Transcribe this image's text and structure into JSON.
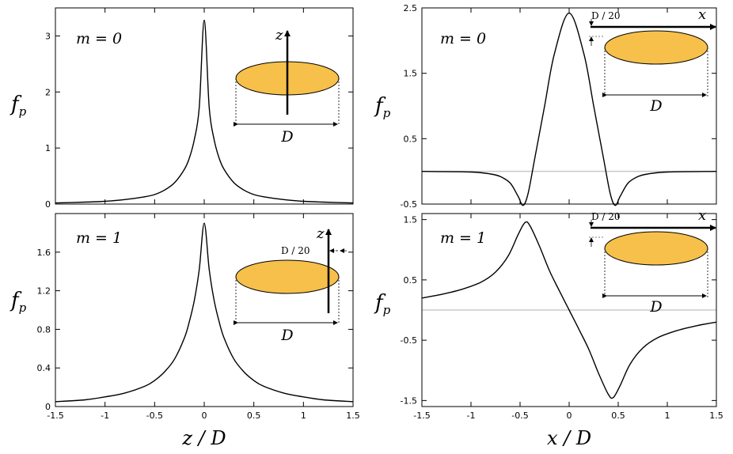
{
  "chart_data": [
    {
      "type": "line",
      "panel": "top-left",
      "annotation": "m = 0",
      "ylabel": "f",
      "ylabel_sub": "p",
      "xlabel": "",
      "xlim": [
        -1.5,
        1.5
      ],
      "ylim": [
        0,
        3.5
      ],
      "yticks": [
        "0",
        "1",
        "2",
        "3"
      ],
      "inset": {
        "axis_label": "z",
        "size_label": "D"
      },
      "series": [
        {
          "name": "f_p",
          "x": [
            -1.5,
            -1.2,
            -1.0,
            -0.8,
            -0.6,
            -0.5,
            -0.4,
            -0.3,
            -0.2,
            -0.15,
            -0.1,
            -0.05,
            0,
            0.05,
            0.1,
            0.15,
            0.2,
            0.3,
            0.4,
            0.5,
            0.6,
            0.8,
            1.0,
            1.2,
            1.5
          ],
          "y": [
            0.02,
            0.035,
            0.05,
            0.08,
            0.13,
            0.17,
            0.25,
            0.38,
            0.62,
            0.82,
            1.15,
            1.72,
            3.28,
            1.72,
            1.15,
            0.82,
            0.62,
            0.38,
            0.25,
            0.17,
            0.13,
            0.08,
            0.05,
            0.035,
            0.02
          ]
        }
      ]
    },
    {
      "type": "line",
      "panel": "top-right",
      "annotation": "m = 0",
      "ylabel": "f",
      "ylabel_sub": "p",
      "xlabel": "",
      "xlim": [
        -1.5,
        1.5
      ],
      "ylim": [
        -0.5,
        2.5
      ],
      "yticks": [
        "-0.5",
        "0.5",
        "1.5",
        "2.5"
      ],
      "zero_line": true,
      "inset": {
        "axis_label": "x",
        "size_label": "D",
        "offset_label": "D / 20"
      },
      "series": [
        {
          "name": "f_p",
          "x": [
            -1.5,
            -1.0,
            -0.8,
            -0.7,
            -0.6,
            -0.52,
            -0.47,
            -0.42,
            -0.35,
            -0.25,
            -0.15,
            0,
            0.15,
            0.25,
            0.35,
            0.42,
            0.47,
            0.52,
            0.6,
            0.7,
            0.8,
            1.0,
            1.5
          ],
          "y": [
            0,
            -0.01,
            -0.04,
            -0.08,
            -0.18,
            -0.38,
            -0.52,
            -0.35,
            0.2,
            1.0,
            1.8,
            2.42,
            1.8,
            1.0,
            0.2,
            -0.35,
            -0.52,
            -0.38,
            -0.18,
            -0.08,
            -0.04,
            -0.01,
            0
          ]
        }
      ]
    },
    {
      "type": "line",
      "panel": "bottom-left",
      "annotation": "m = 1",
      "ylabel": "f",
      "ylabel_sub": "p",
      "xlabel": "z / D",
      "xlim": [
        -1.5,
        1.5
      ],
      "xticks": [
        "-1.5",
        "-1",
        "-0.5",
        "0",
        "0.5",
        "1",
        "1.5"
      ],
      "ylim": [
        0,
        2.0
      ],
      "yticks": [
        "0",
        "0.4",
        "0.8",
        "1.2",
        "1.6"
      ],
      "inset": {
        "axis_label": "z",
        "size_label": "D",
        "offset_label": "D / 20"
      },
      "series": [
        {
          "name": "f_p",
          "x": [
            -1.5,
            -1.2,
            -1.0,
            -0.8,
            -0.6,
            -0.5,
            -0.4,
            -0.3,
            -0.2,
            -0.15,
            -0.1,
            -0.05,
            0,
            0.05,
            0.1,
            0.15,
            0.2,
            0.3,
            0.4,
            0.5,
            0.6,
            0.8,
            1.0,
            1.2,
            1.5
          ],
          "y": [
            0.05,
            0.07,
            0.1,
            0.14,
            0.21,
            0.27,
            0.36,
            0.49,
            0.71,
            0.88,
            1.1,
            1.42,
            1.9,
            1.42,
            1.1,
            0.88,
            0.71,
            0.49,
            0.36,
            0.27,
            0.21,
            0.14,
            0.1,
            0.07,
            0.05
          ]
        }
      ]
    },
    {
      "type": "line",
      "panel": "bottom-right",
      "annotation": "m = 1",
      "ylabel": "f",
      "ylabel_sub": "p",
      "xlabel": "x / D",
      "xlim": [
        -1.5,
        1.5
      ],
      "xticks": [
        "-1.5",
        "-1",
        "-0.5",
        "0",
        "0.5",
        "1",
        "1.5"
      ],
      "ylim": [
        -1.6,
        1.6
      ],
      "yticks": [
        "-1.5",
        "-0.5",
        "0.5",
        "1.5"
      ],
      "zero_line": true,
      "inset": {
        "axis_label": "x",
        "size_label": "D",
        "offset_label": "D / 20"
      },
      "series": [
        {
          "name": "f_p",
          "x": [
            -1.5,
            -1.3,
            -1.1,
            -0.9,
            -0.75,
            -0.62,
            -0.52,
            -0.45,
            -0.4,
            -0.3,
            -0.2,
            -0.1,
            0,
            0.1,
            0.2,
            0.3,
            0.4,
            0.45,
            0.52,
            0.62,
            0.75,
            0.9,
            1.1,
            1.3,
            1.5
          ],
          "y": [
            0.2,
            0.26,
            0.34,
            0.46,
            0.63,
            0.9,
            1.25,
            1.45,
            1.4,
            1.05,
            0.65,
            0.32,
            0,
            -0.32,
            -0.65,
            -1.05,
            -1.4,
            -1.45,
            -1.25,
            -0.9,
            -0.63,
            -0.46,
            -0.34,
            -0.26,
            -0.2
          ]
        }
      ]
    }
  ]
}
